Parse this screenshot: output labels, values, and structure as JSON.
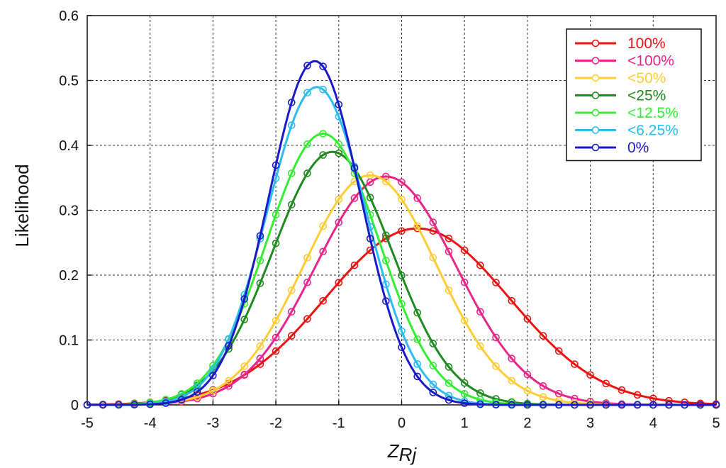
{
  "chart_data": {
    "type": "line",
    "title": "",
    "xlabel_main": "Z",
    "xlabel_sub": "Rj",
    "ylabel": "Likelihood",
    "xlim": [
      -5,
      5
    ],
    "ylim": [
      0,
      0.6
    ],
    "xticks": [
      "-5",
      "-4",
      "-3",
      "-2",
      "-1",
      "0",
      "1",
      "2",
      "3",
      "4",
      "5"
    ],
    "yticks": [
      "0",
      "0.1",
      "0.2",
      "0.3",
      "0.4",
      "0.5",
      "0.6"
    ],
    "grid": true,
    "legend_position": "top-right",
    "series": [
      {
        "name": "100%",
        "color": "#ee1111",
        "mean": 0.25,
        "sd": 1.46,
        "peak": 0.272
      },
      {
        "name": "<100%",
        "color": "#e8258a",
        "mean": -0.25,
        "sd": 1.12,
        "peak": 0.352
      },
      {
        "name": "<50%",
        "color": "#ffcc33",
        "mean": -0.5,
        "sd": 1.06,
        "peak": 0.354
      },
      {
        "name": "<25%",
        "color": "#1f8a1f",
        "mean": -1.1,
        "sd": 0.95,
        "peak": 0.39
      },
      {
        "name": "<12.5%",
        "color": "#33ee33",
        "mean": -1.25,
        "sd": 0.89,
        "peak": 0.418
      },
      {
        "name": "<6.25%",
        "color": "#2bbcf0",
        "mean": -1.35,
        "sd": 0.79,
        "peak": 0.49
      },
      {
        "name": "0%",
        "color": "#1a1ac8",
        "mean": -1.38,
        "sd": 0.73,
        "peak": 0.53
      }
    ]
  }
}
